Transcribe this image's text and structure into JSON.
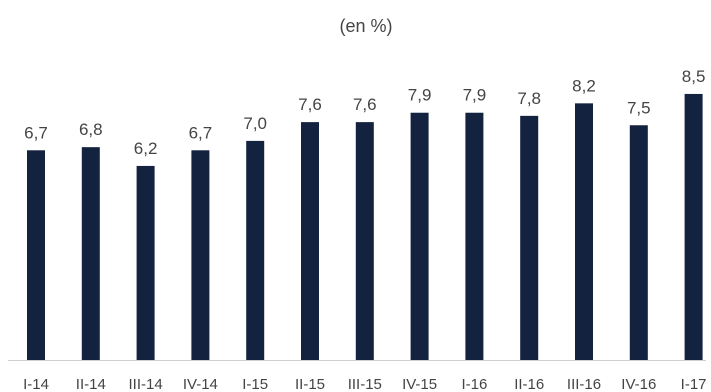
{
  "chart_data": {
    "type": "bar",
    "title": "",
    "subtitle": "(en %)",
    "categories": [
      "I-14",
      "II-14",
      "III-14",
      "IV-14",
      "I-15",
      "II-15",
      "III-15",
      "IV-15",
      "I-16",
      "II-16",
      "III-16",
      "IV-16",
      "I-17"
    ],
    "values": [
      6.7,
      6.8,
      6.2,
      6.7,
      7.0,
      7.6,
      7.6,
      7.9,
      7.9,
      7.8,
      8.2,
      7.5,
      8.5
    ],
    "data_labels": [
      "6,7",
      "6,8",
      "6,2",
      "6,7",
      "7,0",
      "7,6",
      "7,6",
      "7,9",
      "7,9",
      "7,8",
      "8,2",
      "7,5",
      "8,5"
    ],
    "xlabel": "",
    "ylabel": "",
    "ylim": [
      0,
      10.5
    ],
    "grid": false,
    "legend": "none",
    "bar_color": "#13223f",
    "axis_color": "#d0d0d0"
  }
}
